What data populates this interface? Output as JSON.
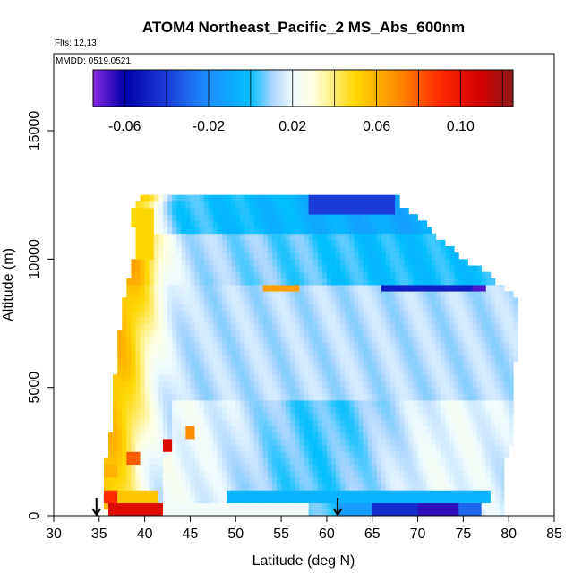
{
  "chart_data": {
    "type": "heatmap",
    "title": "ATOM4 Northeast_Pacific_2 MS_Abs_600nm",
    "xlabel": "Latitude (deg N)",
    "ylabel": "Altitude (m)",
    "xlim": [
      30,
      85
    ],
    "ylim": [
      0,
      18000
    ],
    "x_ticks": [
      "30",
      "35",
      "40",
      "45",
      "50",
      "55",
      "60",
      "65",
      "70",
      "75",
      "80",
      "85"
    ],
    "y_ticks": [
      "0",
      "5000",
      "10000",
      "15000"
    ],
    "flights_note": "Flts: 12,13",
    "mmdd_note": "MMDD: 0519,0521",
    "colorbar": {
      "range": [
        -0.075,
        0.125
      ],
      "ticks": [
        "-0.06",
        "-0.02",
        "0.02",
        "0.06",
        "0.10"
      ],
      "stops": [
        {
          "value": -0.075,
          "color": "#8a2be2"
        },
        {
          "value": -0.06,
          "color": "#0000a8"
        },
        {
          "value": -0.04,
          "color": "#1c3cd8"
        },
        {
          "value": -0.02,
          "color": "#1e90ff"
        },
        {
          "value": 0.0,
          "color": "#00bfff"
        },
        {
          "value": 0.01,
          "color": "#a8d4ff"
        },
        {
          "value": 0.02,
          "color": "#f0fbff"
        },
        {
          "value": 0.03,
          "color": "#ffffe0"
        },
        {
          "value": 0.05,
          "color": "#ffd700"
        },
        {
          "value": 0.07,
          "color": "#ff8c00"
        },
        {
          "value": 0.09,
          "color": "#ff2a00"
        },
        {
          "value": 0.11,
          "color": "#d00000"
        },
        {
          "value": 0.125,
          "color": "#8b1a1a"
        }
      ]
    },
    "markers": [
      {
        "lat": 34.7,
        "alt_top": 700
      },
      {
        "lat": 61.2,
        "alt_top": 700
      }
    ],
    "profile_bounds": [
      {
        "alt": 0,
        "lat_min": 35.8,
        "lat_max": 79.5
      },
      {
        "alt": 1000,
        "lat_min": 35.5,
        "lat_max": 79.5
      },
      {
        "alt": 2000,
        "lat_min": 35.6,
        "lat_max": 79.4
      },
      {
        "alt": 3000,
        "lat_min": 36.2,
        "lat_max": 80.2
      },
      {
        "alt": 4000,
        "lat_min": 36.5,
        "lat_max": 80.4
      },
      {
        "alt": 5000,
        "lat_min": 36.5,
        "lat_max": 80.3
      },
      {
        "alt": 6000,
        "lat_min": 37.0,
        "lat_max": 80.5
      },
      {
        "alt": 7000,
        "lat_min": 37.2,
        "lat_max": 80.6
      },
      {
        "alt": 8000,
        "lat_min": 37.6,
        "lat_max": 80.7
      },
      {
        "alt": 8500,
        "lat_min": 37.8,
        "lat_max": 81.0
      },
      {
        "alt": 9000,
        "lat_min": 38.1,
        "lat_max": 78.5
      },
      {
        "alt": 9600,
        "lat_min": 38.5,
        "lat_max": 77.0
      },
      {
        "alt": 10000,
        "lat_min": 38.8,
        "lat_max": 74.5
      },
      {
        "alt": 10600,
        "lat_min": 38.8,
        "lat_max": 73.0
      },
      {
        "alt": 11000,
        "lat_min": 38.8,
        "lat_max": 71.5
      },
      {
        "alt": 11600,
        "lat_min": 38.6,
        "lat_max": 70.0
      },
      {
        "alt": 12000,
        "lat_min": 38.6,
        "lat_max": 68.0
      },
      {
        "alt": 12500,
        "lat_min": 40.0,
        "lat_max": 67.5
      }
    ],
    "features": [
      {
        "lat_min": 35.8,
        "lat_max": 42.0,
        "alt_min": 0,
        "alt_max": 500,
        "value": 0.105
      },
      {
        "lat_min": 42.0,
        "lat_max": 58.0,
        "alt_min": 0,
        "alt_max": 500,
        "value": 0.022
      },
      {
        "lat_min": 61.0,
        "lat_max": 65.0,
        "alt_min": 0,
        "alt_max": 500,
        "value": -0.015
      },
      {
        "lat_min": 65.0,
        "lat_max": 70.0,
        "alt_min": 0,
        "alt_max": 500,
        "value": -0.045
      },
      {
        "lat_min": 70.0,
        "lat_max": 74.5,
        "alt_min": 0,
        "alt_max": 500,
        "value": -0.065
      },
      {
        "lat_min": 74.5,
        "lat_max": 77.0,
        "alt_min": 0,
        "alt_max": 500,
        "value": -0.03
      },
      {
        "lat_min": 35.5,
        "lat_max": 37.0,
        "alt_min": 500,
        "alt_max": 1000,
        "value": 0.09
      },
      {
        "lat_min": 37.0,
        "lat_max": 41.5,
        "alt_min": 500,
        "alt_max": 1000,
        "value": 0.055
      },
      {
        "lat_min": 49.0,
        "lat_max": 78.0,
        "alt_min": 500,
        "alt_max": 1000,
        "value": -0.005
      },
      {
        "lat_min": 35.5,
        "lat_max": 37.0,
        "alt_min": 1500,
        "alt_max": 2000,
        "value": 0.06
      },
      {
        "lat_min": 38.0,
        "lat_max": 39.5,
        "alt_min": 2000,
        "alt_max": 2500,
        "value": 0.08
      },
      {
        "lat_min": 42.2,
        "lat_max": 43.0,
        "alt_min": 2500,
        "alt_max": 3000,
        "value": 0.105
      },
      {
        "lat_min": 44.7,
        "lat_max": 45.6,
        "alt_min": 3000,
        "alt_max": 3500,
        "value": 0.07
      },
      {
        "lat_min": 38.0,
        "lat_max": 41.0,
        "alt_min": 10000,
        "alt_max": 12000,
        "value": 0.05
      },
      {
        "lat_min": 53.0,
        "lat_max": 57.0,
        "alt_min": 8700,
        "alt_max": 9000,
        "value": 0.065
      },
      {
        "lat_min": 66.0,
        "lat_max": 76.0,
        "alt_min": 8700,
        "alt_max": 9000,
        "value": -0.05
      },
      {
        "lat_min": 76.0,
        "lat_max": 77.3,
        "alt_min": 8700,
        "alt_max": 9000,
        "value": -0.068
      },
      {
        "lat_min": 58.0,
        "lat_max": 67.5,
        "alt_min": 11800,
        "alt_max": 12500,
        "value": -0.04
      }
    ]
  }
}
